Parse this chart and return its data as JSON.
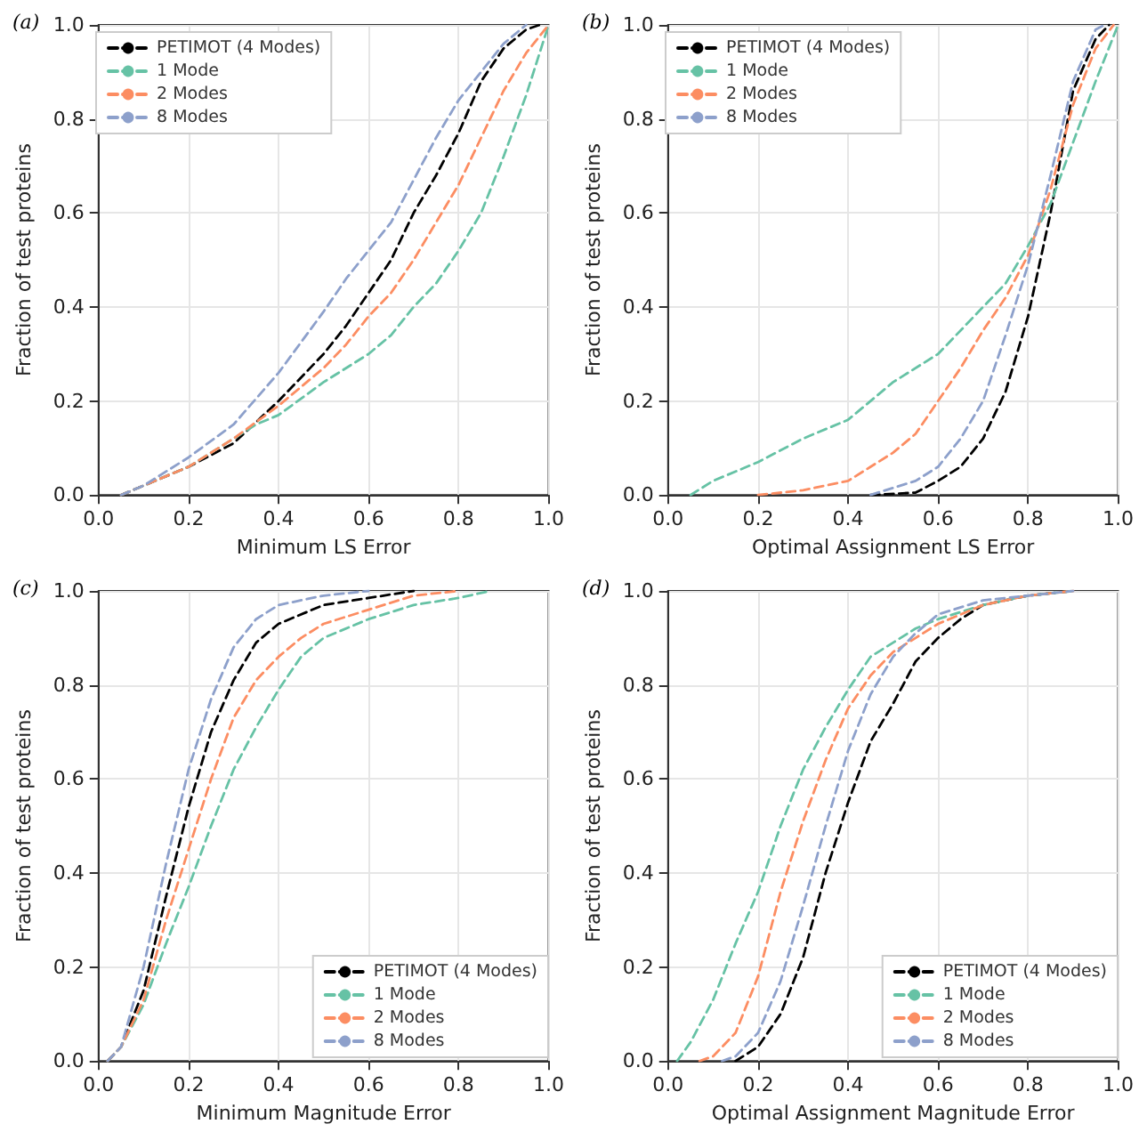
{
  "chart_data": [
    {
      "type": "line",
      "title": "(a)",
      "xlabel": "Minimum LS Error",
      "ylabel": "Fraction of test proteins",
      "xlim": [
        0,
        1
      ],
      "ylim": [
        0,
        1
      ],
      "xticks": [
        {
          "value": 0,
          "label": "0.0"
        },
        {
          "value": 0.2,
          "label": "0.2"
        },
        {
          "value": 0.4,
          "label": "0.4"
        },
        {
          "value": 0.6,
          "label": "0.6"
        },
        {
          "value": 0.8,
          "label": "0.8"
        },
        {
          "value": 1,
          "label": "1.0"
        }
      ],
      "yticks": [
        {
          "value": 0,
          "label": "0.0"
        },
        {
          "value": 0.2,
          "label": "0.2"
        },
        {
          "value": 0.4,
          "label": "0.4"
        },
        {
          "value": 0.6,
          "label": "0.6"
        },
        {
          "value": 0.8,
          "label": "0.8"
        },
        {
          "value": 1,
          "label": "1.0"
        }
      ],
      "grid": true,
      "legend": "top left",
      "line_style": "dashed",
      "series": [
        {
          "name": "PETIMOT (4 Modes)",
          "color": "#000000",
          "x": [
            0.05,
            0.1,
            0.2,
            0.3,
            0.4,
            0.5,
            0.55,
            0.6,
            0.65,
            0.7,
            0.75,
            0.8,
            0.85,
            0.9,
            0.95,
            0.98
          ],
          "values": [
            0,
            0.02,
            0.06,
            0.11,
            0.2,
            0.3,
            0.36,
            0.43,
            0.5,
            0.6,
            0.68,
            0.77,
            0.88,
            0.95,
            0.99,
            1
          ]
        },
        {
          "name": "1 Mode",
          "color": "#66c2a5",
          "x": [
            0.05,
            0.1,
            0.2,
            0.3,
            0.35,
            0.4,
            0.5,
            0.6,
            0.65,
            0.7,
            0.75,
            0.8,
            0.85,
            0.9,
            0.95,
            1
          ],
          "values": [
            0,
            0.02,
            0.06,
            0.12,
            0.15,
            0.17,
            0.24,
            0.3,
            0.34,
            0.4,
            0.45,
            0.52,
            0.6,
            0.72,
            0.85,
            1
          ]
        },
        {
          "name": "2 Modes",
          "color": "#fc8d62",
          "x": [
            0.05,
            0.2,
            0.3,
            0.4,
            0.5,
            0.55,
            0.6,
            0.65,
            0.7,
            0.75,
            0.8,
            0.85,
            0.9,
            0.95,
            1
          ],
          "values": [
            0,
            0.06,
            0.12,
            0.19,
            0.27,
            0.32,
            0.38,
            0.43,
            0.5,
            0.58,
            0.66,
            0.76,
            0.86,
            0.94,
            1
          ]
        },
        {
          "name": "8 Modes",
          "color": "#8da0cb",
          "x": [
            0.05,
            0.1,
            0.2,
            0.3,
            0.4,
            0.5,
            0.55,
            0.6,
            0.65,
            0.7,
            0.75,
            0.8,
            0.85,
            0.9,
            0.95
          ],
          "values": [
            0,
            0.02,
            0.08,
            0.15,
            0.26,
            0.39,
            0.46,
            0.52,
            0.58,
            0.67,
            0.76,
            0.84,
            0.9,
            0.96,
            1
          ]
        }
      ]
    },
    {
      "type": "line",
      "title": "(b)",
      "xlabel": "Optimal Assignment LS Error",
      "ylabel": "Fraction of test proteins",
      "xlim": [
        0,
        1
      ],
      "ylim": [
        0,
        1
      ],
      "xticks": [
        {
          "value": 0,
          "label": "0.0"
        },
        {
          "value": 0.2,
          "label": "0.2"
        },
        {
          "value": 0.4,
          "label": "0.4"
        },
        {
          "value": 0.6,
          "label": "0.6"
        },
        {
          "value": 0.8,
          "label": "0.8"
        },
        {
          "value": 1,
          "label": "1.0"
        }
      ],
      "yticks": [
        {
          "value": 0,
          "label": "0.0"
        },
        {
          "value": 0.2,
          "label": "0.2"
        },
        {
          "value": 0.4,
          "label": "0.4"
        },
        {
          "value": 0.6,
          "label": "0.6"
        },
        {
          "value": 0.8,
          "label": "0.8"
        },
        {
          "value": 1,
          "label": "1.0"
        }
      ],
      "grid": true,
      "legend": "top left",
      "line_style": "dashed",
      "series": [
        {
          "name": "PETIMOT (4 Modes)",
          "color": "#000000",
          "x": [
            0.45,
            0.55,
            0.6,
            0.65,
            0.7,
            0.75,
            0.8,
            0.85,
            0.9,
            0.95,
            0.98
          ],
          "values": [
            0,
            0.005,
            0.03,
            0.06,
            0.12,
            0.22,
            0.38,
            0.6,
            0.86,
            0.97,
            1
          ]
        },
        {
          "name": "1 Mode",
          "color": "#66c2a5",
          "x": [
            0.05,
            0.1,
            0.2,
            0.3,
            0.4,
            0.5,
            0.6,
            0.7,
            0.75,
            0.8,
            0.85,
            0.9,
            0.95,
            1
          ],
          "values": [
            0,
            0.03,
            0.07,
            0.12,
            0.16,
            0.24,
            0.3,
            0.4,
            0.45,
            0.53,
            0.62,
            0.75,
            0.88,
            1
          ]
        },
        {
          "name": "2 Modes",
          "color": "#fc8d62",
          "x": [
            0.2,
            0.3,
            0.4,
            0.45,
            0.5,
            0.55,
            0.6,
            0.65,
            0.7,
            0.75,
            0.8,
            0.85,
            0.9,
            0.95,
            0.99
          ],
          "values": [
            0,
            0.01,
            0.03,
            0.06,
            0.09,
            0.13,
            0.2,
            0.27,
            0.35,
            0.42,
            0.51,
            0.65,
            0.83,
            0.95,
            1
          ]
        },
        {
          "name": "8 Modes",
          "color": "#8da0cb",
          "x": [
            0.45,
            0.5,
            0.55,
            0.6,
            0.65,
            0.7,
            0.75,
            0.8,
            0.85,
            0.9,
            0.95,
            0.97
          ],
          "values": [
            0,
            0.015,
            0.03,
            0.06,
            0.12,
            0.2,
            0.34,
            0.49,
            0.68,
            0.88,
            0.99,
            1
          ]
        }
      ]
    },
    {
      "type": "line",
      "title": "(c)",
      "xlabel": "Minimum Magnitude Error",
      "ylabel": "Fraction of test proteins",
      "xlim": [
        0,
        1
      ],
      "ylim": [
        0,
        1
      ],
      "xticks": [
        {
          "value": 0,
          "label": "0.0"
        },
        {
          "value": 0.2,
          "label": "0.2"
        },
        {
          "value": 0.4,
          "label": "0.4"
        },
        {
          "value": 0.6,
          "label": "0.6"
        },
        {
          "value": 0.8,
          "label": "0.8"
        },
        {
          "value": 1,
          "label": "1.0"
        }
      ],
      "yticks": [
        {
          "value": 0,
          "label": "0.0"
        },
        {
          "value": 0.2,
          "label": "0.2"
        },
        {
          "value": 0.4,
          "label": "0.4"
        },
        {
          "value": 0.6,
          "label": "0.6"
        },
        {
          "value": 0.8,
          "label": "0.8"
        },
        {
          "value": 1,
          "label": "1.0"
        }
      ],
      "grid": true,
      "legend": "bottom right",
      "line_style": "dashed",
      "series": [
        {
          "name": "PETIMOT (4 Modes)",
          "color": "#000000",
          "x": [
            0.02,
            0.05,
            0.1,
            0.15,
            0.2,
            0.25,
            0.3,
            0.35,
            0.4,
            0.5,
            0.6,
            0.7
          ],
          "values": [
            0,
            0.03,
            0.15,
            0.35,
            0.54,
            0.7,
            0.81,
            0.89,
            0.93,
            0.97,
            0.985,
            1
          ]
        },
        {
          "name": "1 Mode",
          "color": "#66c2a5",
          "x": [
            0.02,
            0.05,
            0.1,
            0.15,
            0.2,
            0.25,
            0.3,
            0.35,
            0.4,
            0.45,
            0.5,
            0.6,
            0.7,
            0.8,
            0.87
          ],
          "values": [
            0,
            0.03,
            0.12,
            0.25,
            0.37,
            0.5,
            0.62,
            0.71,
            0.79,
            0.86,
            0.9,
            0.94,
            0.97,
            0.985,
            1
          ]
        },
        {
          "name": "2 Modes",
          "color": "#fc8d62",
          "x": [
            0.02,
            0.05,
            0.1,
            0.15,
            0.2,
            0.25,
            0.3,
            0.35,
            0.4,
            0.45,
            0.5,
            0.6,
            0.7,
            0.8
          ],
          "values": [
            0,
            0.03,
            0.13,
            0.3,
            0.45,
            0.6,
            0.73,
            0.81,
            0.86,
            0.9,
            0.93,
            0.96,
            0.99,
            1
          ]
        },
        {
          "name": "8 Modes",
          "color": "#8da0cb",
          "x": [
            0.02,
            0.05,
            0.1,
            0.15,
            0.2,
            0.25,
            0.3,
            0.35,
            0.4,
            0.5,
            0.6
          ],
          "values": [
            0,
            0.03,
            0.2,
            0.42,
            0.62,
            0.77,
            0.88,
            0.94,
            0.97,
            0.99,
            1
          ]
        }
      ]
    },
    {
      "type": "line",
      "title": "(d)",
      "xlabel": "Optimal Assignment Magnitude Error",
      "ylabel": "Fraction of test proteins",
      "xlim": [
        0,
        1
      ],
      "ylim": [
        0,
        1
      ],
      "xticks": [
        {
          "value": 0,
          "label": "0.0"
        },
        {
          "value": 0.2,
          "label": "0.2"
        },
        {
          "value": 0.4,
          "label": "0.4"
        },
        {
          "value": 0.6,
          "label": "0.6"
        },
        {
          "value": 0.8,
          "label": "0.8"
        },
        {
          "value": 1,
          "label": "1.0"
        }
      ],
      "yticks": [
        {
          "value": 0,
          "label": "0.0"
        },
        {
          "value": 0.2,
          "label": "0.2"
        },
        {
          "value": 0.4,
          "label": "0.4"
        },
        {
          "value": 0.6,
          "label": "0.6"
        },
        {
          "value": 0.8,
          "label": "0.8"
        },
        {
          "value": 1,
          "label": "1.0"
        }
      ],
      "grid": true,
      "legend": "bottom right",
      "line_style": "dashed",
      "series": [
        {
          "name": "PETIMOT (4 Modes)",
          "color": "#000000",
          "x": [
            0.15,
            0.2,
            0.25,
            0.3,
            0.35,
            0.4,
            0.45,
            0.5,
            0.55,
            0.6,
            0.65,
            0.7,
            0.8,
            0.9
          ],
          "values": [
            0,
            0.03,
            0.1,
            0.22,
            0.4,
            0.55,
            0.68,
            0.76,
            0.85,
            0.9,
            0.94,
            0.97,
            0.99,
            1
          ]
        },
        {
          "name": "1 Mode",
          "color": "#66c2a5",
          "x": [
            0.02,
            0.05,
            0.1,
            0.15,
            0.2,
            0.25,
            0.3,
            0.35,
            0.4,
            0.45,
            0.5,
            0.55,
            0.6,
            0.7,
            0.8,
            0.9
          ],
          "values": [
            0,
            0.04,
            0.13,
            0.25,
            0.36,
            0.5,
            0.62,
            0.71,
            0.79,
            0.86,
            0.89,
            0.92,
            0.94,
            0.97,
            0.99,
            1
          ]
        },
        {
          "name": "2 Modes",
          "color": "#fc8d62",
          "x": [
            0.07,
            0.1,
            0.15,
            0.2,
            0.25,
            0.3,
            0.35,
            0.4,
            0.45,
            0.5,
            0.55,
            0.6,
            0.7,
            0.8,
            0.9
          ],
          "values": [
            0,
            0.01,
            0.06,
            0.18,
            0.36,
            0.51,
            0.64,
            0.75,
            0.82,
            0.87,
            0.9,
            0.93,
            0.97,
            0.99,
            1
          ]
        },
        {
          "name": "8 Modes",
          "color": "#8da0cb",
          "x": [
            0.12,
            0.15,
            0.2,
            0.25,
            0.3,
            0.35,
            0.4,
            0.45,
            0.5,
            0.55,
            0.6,
            0.7,
            0.8,
            0.9
          ],
          "values": [
            0,
            0.01,
            0.06,
            0.17,
            0.33,
            0.5,
            0.66,
            0.78,
            0.86,
            0.91,
            0.95,
            0.98,
            0.99,
            1
          ]
        }
      ]
    }
  ]
}
